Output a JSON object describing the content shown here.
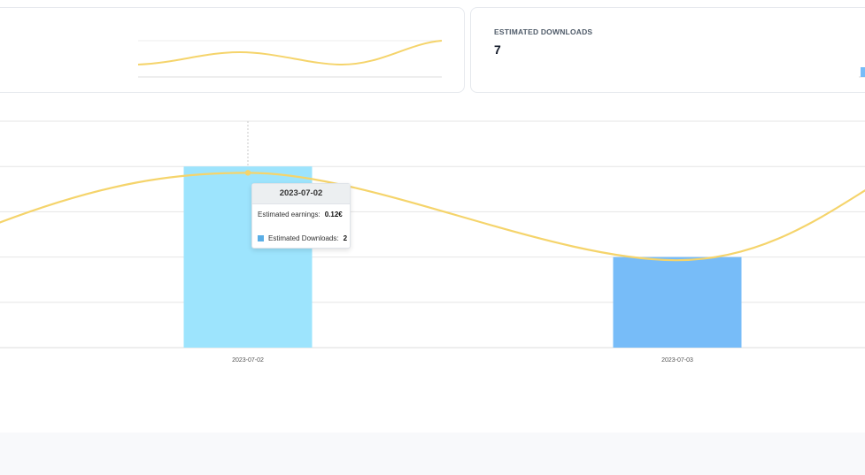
{
  "kpi_cards": [
    {
      "title": "",
      "value": ""
    },
    {
      "title": "ESTIMATED DOWNLOADS",
      "value": "7"
    }
  ],
  "colors": {
    "earnings_line": "#f5d46b",
    "bar_highlight": "#9de4fd",
    "bar_default": "#77bcf8",
    "grid": "#e6e6e6",
    "crosshair": "#c8c8c8",
    "legend_swatch": "#5aaee6"
  },
  "tooltip": {
    "date": "2023-07-02",
    "earnings_label": "Estimated earnings:",
    "earnings_value": "0.12€",
    "downloads_label": "Estimated Downloads:",
    "downloads_value": "2"
  },
  "chart_data": {
    "type": "bar",
    "categories": [
      "2023-07-02",
      "2023-07-03"
    ],
    "series": [
      {
        "name": "Estimated Downloads",
        "type": "bar",
        "values": [
          2,
          1
        ]
      },
      {
        "name": "Estimated earnings",
        "type": "line",
        "values": [
          0.12,
          0.06
        ]
      }
    ],
    "ylim": [
      0,
      2.5
    ],
    "grid": true,
    "legend": "none",
    "xlabel": "",
    "ylabel": ""
  }
}
